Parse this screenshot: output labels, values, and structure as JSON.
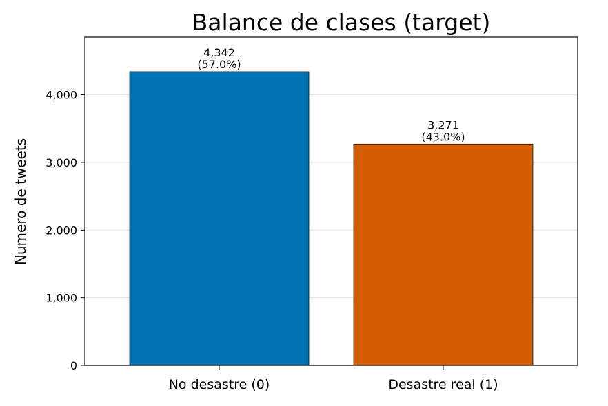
{
  "chart_data": {
    "type": "bar",
    "title": "Balance de clases (target)",
    "xlabel": "",
    "ylabel": "Numero de tweets",
    "categories": [
      "No desastre (0)",
      "Desastre real (1)"
    ],
    "values": [
      4342,
      3271
    ],
    "value_labels": [
      "4,342",
      "3,271"
    ],
    "percent_labels": [
      "(57.0%)",
      "(43.0%)"
    ],
    "colors": [
      "#0072B2",
      "#D55E00"
    ],
    "ylim": [
      0,
      4850
    ],
    "yticks": [
      0,
      1000,
      2000,
      3000,
      4000
    ],
    "ytick_labels": [
      "0",
      "1,000",
      "2,000",
      "3,000",
      "4,000"
    ],
    "grid": "y-axis, light gray",
    "legend": "none"
  }
}
